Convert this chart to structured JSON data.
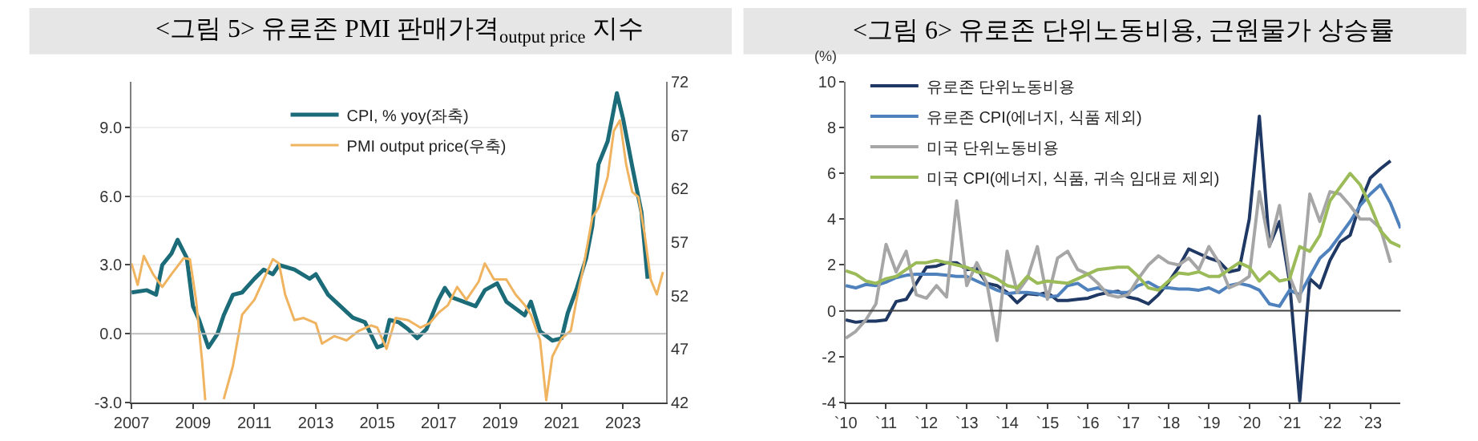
{
  "chart_data": [
    {
      "type": "line",
      "title": "<그림 5> 유로존 PMI 판매가격$_{output price}$ 지수",
      "legend": "top",
      "grid": "y",
      "xlim": [
        2007,
        2024.4
      ],
      "xticks": [
        2007,
        2009,
        2011,
        2013,
        2015,
        2017,
        2019,
        2021,
        2023
      ],
      "ylim": [
        -3,
        11
      ],
      "yticks": [
        {
          "value": -3,
          "label": "-3.0"
        },
        {
          "value": 0,
          "label": "0.0"
        },
        {
          "value": 3,
          "label": "3.0"
        },
        {
          "value": 6,
          "label": "6.0"
        },
        {
          "value": 9,
          "label": "9.0"
        }
      ],
      "y2lim": [
        42,
        72
      ],
      "y2ticks": [
        42,
        47,
        52,
        57,
        62,
        67,
        72
      ],
      "ref_lines": [
        {
          "axis": "y",
          "value": 0,
          "color": "#bfbfbf"
        }
      ],
      "series": [
        {
          "name": "CPI, % yoy(좌축)",
          "color": "#1b6b78",
          "x": [
            2007.0,
            2007.5,
            2007.8,
            2008.0,
            2008.3,
            2008.5,
            2008.8,
            2009.0,
            2009.2,
            2009.5,
            2009.8,
            2010.0,
            2010.3,
            2010.6,
            2011.0,
            2011.3,
            2011.6,
            2011.8,
            2012.3,
            2012.8,
            2013.0,
            2013.4,
            2013.8,
            2014.2,
            2014.6,
            2015.0,
            2015.2,
            2015.4,
            2015.7,
            2016.0,
            2016.3,
            2016.6,
            2017.0,
            2017.2,
            2017.4,
            2017.8,
            2018.2,
            2018.5,
            2018.9,
            2019.2,
            2019.5,
            2019.8,
            2020.0,
            2020.3,
            2020.7,
            2021.0,
            2021.2,
            2021.5,
            2021.8,
            2022.0,
            2022.2,
            2022.5,
            2022.8,
            2023.0,
            2023.3,
            2023.6,
            2023.8
          ],
          "values": [
            1.8,
            1.9,
            1.7,
            3.0,
            3.5,
            4.1,
            3.3,
            1.2,
            0.6,
            -0.6,
            0.0,
            0.8,
            1.7,
            1.8,
            2.4,
            2.8,
            2.6,
            3.0,
            2.8,
            2.4,
            2.6,
            1.7,
            1.2,
            0.7,
            0.5,
            -0.6,
            -0.5,
            0.6,
            0.5,
            0.2,
            -0.2,
            0.2,
            1.5,
            2.0,
            1.6,
            1.4,
            1.2,
            1.9,
            2.2,
            1.4,
            1.1,
            0.8,
            1.4,
            0.1,
            -0.3,
            -0.2,
            0.9,
            2.0,
            3.3,
            4.7,
            7.4,
            8.4,
            10.5,
            9.4,
            7.3,
            5.3,
            2.4
          ]
        },
        {
          "name": "PMI output price(우축)",
          "color": "#f0b460",
          "axis": "y2",
          "x": [
            2007.0,
            2007.2,
            2007.4,
            2007.7,
            2008.0,
            2008.3,
            2008.7,
            2008.9,
            2009.1,
            2009.3,
            2009.4,
            2009.7,
            2010.0,
            2010.3,
            2010.6,
            2011.0,
            2011.3,
            2011.6,
            2011.8,
            2012.0,
            2012.3,
            2012.6,
            2013.0,
            2013.2,
            2013.6,
            2014.0,
            2014.4,
            2014.8,
            2015.0,
            2015.3,
            2015.6,
            2016.0,
            2016.4,
            2016.7,
            2017.0,
            2017.3,
            2017.6,
            2017.9,
            2018.3,
            2018.5,
            2018.8,
            2019.2,
            2019.5,
            2019.8,
            2020.0,
            2020.3,
            2020.5,
            2020.7,
            2021.0,
            2021.3,
            2021.5,
            2021.7,
            2022.0,
            2022.2,
            2022.5,
            2022.7,
            2022.9,
            2023.1,
            2023.3,
            2023.5,
            2023.7,
            2023.9,
            2024.1,
            2024.3
          ],
          "values": [
            55.0,
            53.0,
            55.7,
            54.0,
            52.8,
            54.0,
            55.5,
            55.4,
            51.6,
            45.8,
            42.2,
            null,
            42.3,
            45.4,
            50.2,
            51.6,
            53.5,
            55.4,
            55.0,
            52.1,
            49.7,
            49.9,
            49.4,
            47.5,
            48.2,
            47.8,
            48.7,
            49.2,
            49.0,
            47.0,
            49.9,
            49.7,
            49.0,
            49.4,
            50.4,
            51.1,
            52.8,
            51.6,
            53.3,
            55.0,
            53.5,
            53.5,
            52.1,
            51.1,
            50.2,
            47.8,
            42.2,
            46.3,
            48.0,
            48.7,
            51.8,
            54.5,
            59.3,
            60.2,
            63.1,
            67.4,
            68.4,
            64.3,
            61.7,
            61.2,
            57.8,
            53.5,
            52.1,
            54.2
          ]
        }
      ]
    },
    {
      "type": "line",
      "title": "<그림 6> 유로존 단위노동비용, 근원물가 상승률",
      "ylabel": "(%)",
      "legend": "top left",
      "grid": false,
      "categories": [
        "`10",
        null,
        null,
        null,
        "`11",
        null,
        null,
        null,
        "`12",
        null,
        null,
        null,
        "`13",
        null,
        null,
        null,
        "`14",
        null,
        null,
        null,
        "`15",
        null,
        null,
        null,
        "`16",
        null,
        null,
        null,
        "`17",
        null,
        null,
        null,
        "`18",
        null,
        null,
        null,
        "`19",
        null,
        null,
        null,
        "`20",
        null,
        null,
        null,
        "`21",
        null,
        null,
        null,
        "`22",
        null,
        null,
        null,
        "`23",
        null,
        null,
        null
      ],
      "ylim": [
        -4,
        10
      ],
      "yticks": [
        -4,
        -2,
        0,
        2,
        4,
        6,
        8,
        10
      ],
      "ref_lines": [
        {
          "axis": "y",
          "value": 0,
          "color": "#404040"
        }
      ],
      "series": [
        {
          "name": "유로존 단위노동비용",
          "color": "#1f3864",
          "values": [
            -0.4,
            -0.5,
            -0.45,
            -0.45,
            -0.4,
            0.4,
            0.5,
            1.2,
            1.9,
            1.95,
            2.1,
            2.1,
            1.8,
            1.85,
            1.2,
            1.1,
            0.8,
            0.35,
            0.75,
            0.7,
            0.8,
            0.45,
            0.45,
            0.5,
            0.55,
            0.7,
            0.8,
            0.85,
            0.6,
            0.5,
            0.3,
            0.7,
            1.25,
            1.9,
            2.7,
            2.5,
            2.3,
            2.15,
            1.7,
            1.8,
            4.0,
            8.5,
            2.85,
            3.9,
            1.25,
            -3.95,
            1.4,
            1.0,
            2.2,
            3.0,
            3.3,
            4.7,
            5.8,
            6.2,
            6.55,
            null
          ]
        },
        {
          "name": "유로존 CPI(에너지, 식품 제외)",
          "color": "#4f81bd",
          "values": [
            1.1,
            1.0,
            1.15,
            1.1,
            1.25,
            1.45,
            1.55,
            1.6,
            1.6,
            1.6,
            1.55,
            1.5,
            1.5,
            1.3,
            1.1,
            0.9,
            0.75,
            0.8,
            0.8,
            0.75,
            0.6,
            0.65,
            1.1,
            1.2,
            0.9,
            1.0,
            0.85,
            0.8,
            0.8,
            1.1,
            1.25,
            1.0,
            1.0,
            0.95,
            0.95,
            0.9,
            1.0,
            0.8,
            1.1,
            1.2,
            1.1,
            0.9,
            0.3,
            0.2,
            0.9,
            0.7,
            1.5,
            2.3,
            2.7,
            3.3,
            3.9,
            4.6,
            5.1,
            5.5,
            4.7,
            3.6
          ]
        },
        {
          "name": "미국 단위노동비용",
          "color": "#a6a6a6",
          "values": [
            -1.2,
            -0.9,
            -0.4,
            0.3,
            2.9,
            1.7,
            2.6,
            0.7,
            0.55,
            1.1,
            0.6,
            4.8,
            1.1,
            2.1,
            1.2,
            -1.3,
            2.6,
            0.8,
            1.4,
            2.8,
            0.5,
            2.3,
            2.6,
            1.8,
            1.6,
            1.2,
            0.7,
            0.6,
            0.7,
            1.4,
            2.0,
            2.4,
            2.1,
            2.0,
            2.3,
            1.8,
            2.8,
            2.1,
            1.0,
            1.2,
            1.5,
            5.2,
            2.8,
            4.6,
            1.5,
            0.4,
            5.1,
            3.9,
            5.2,
            5.1,
            4.6,
            4.0,
            4.0,
            3.6,
            2.1,
            null
          ]
        },
        {
          "name": "미국 CPI(에너지, 식품, 귀속 임대료 제외)",
          "color": "#9bbb59",
          "values": [
            1.75,
            1.6,
            1.3,
            1.2,
            1.4,
            1.5,
            1.8,
            2.1,
            2.1,
            2.2,
            2.1,
            2.0,
            1.9,
            1.7,
            1.6,
            1.4,
            1.1,
            1.0,
            1.5,
            1.2,
            1.3,
            1.25,
            1.2,
            1.4,
            1.6,
            1.8,
            1.85,
            1.9,
            1.9,
            1.5,
            1.0,
            0.9,
            1.3,
            1.65,
            1.6,
            1.7,
            1.5,
            1.5,
            1.8,
            2.1,
            1.9,
            1.3,
            1.7,
            1.3,
            1.4,
            2.8,
            2.6,
            3.3,
            4.8,
            5.4,
            6.0,
            5.5,
            4.6,
            3.5,
            3.0,
            2.8
          ]
        }
      ]
    }
  ]
}
